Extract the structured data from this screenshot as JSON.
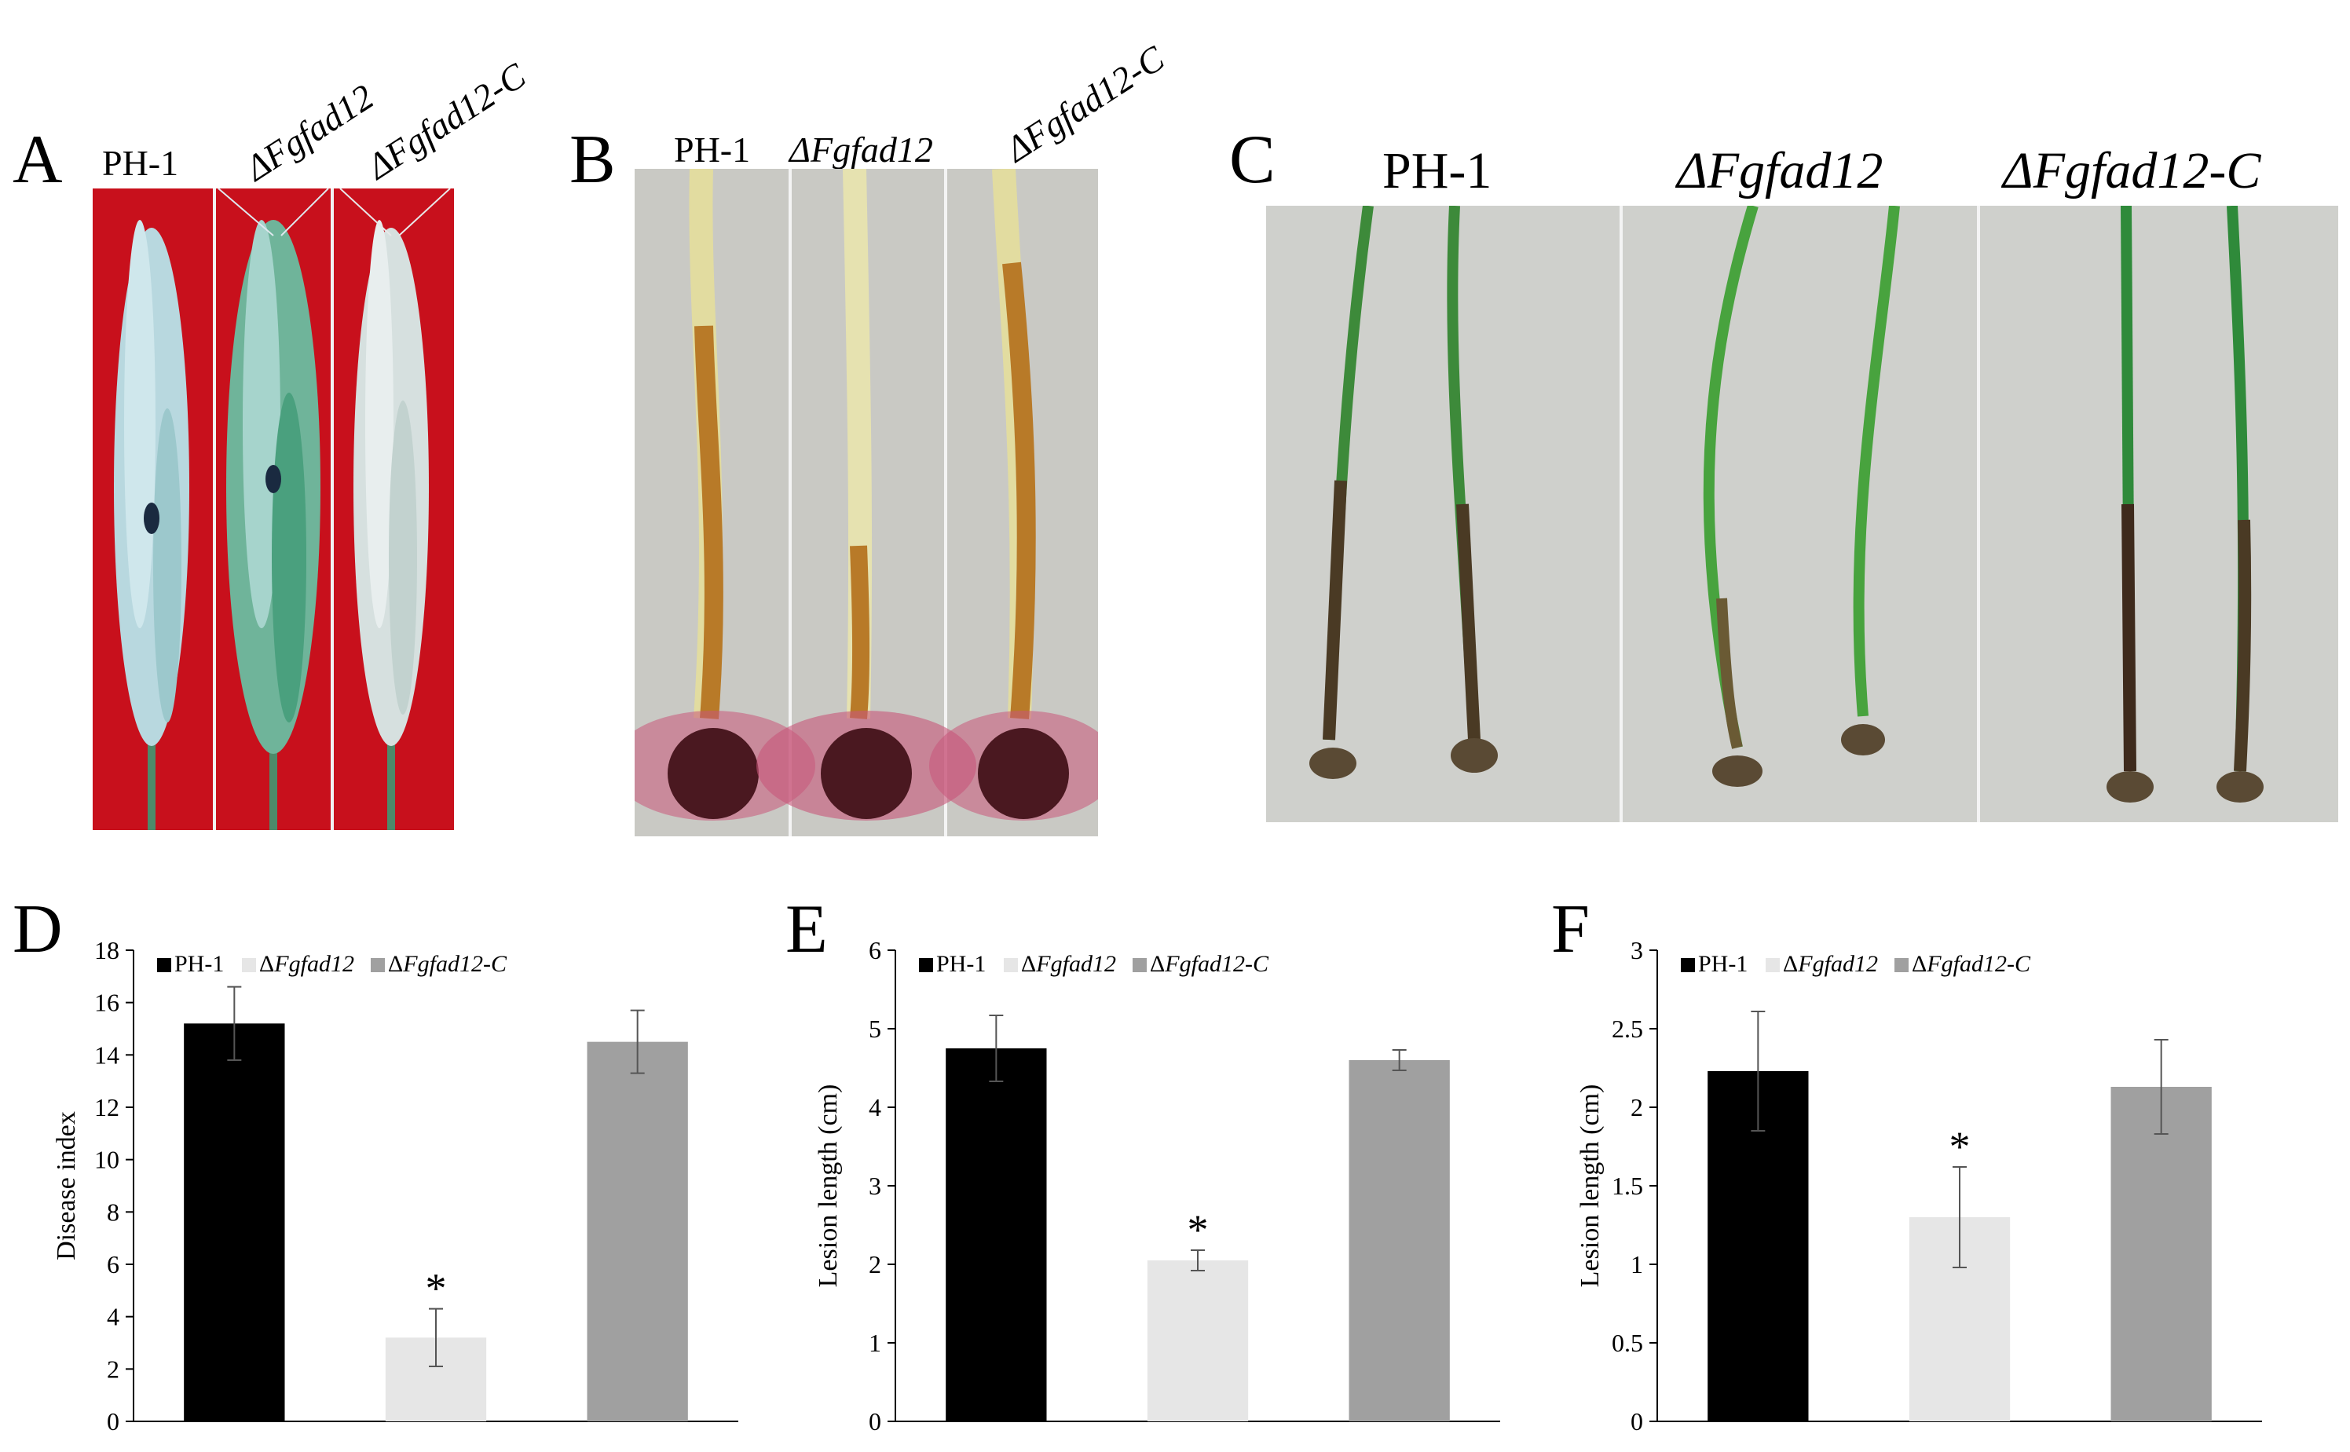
{
  "panels": {
    "A": {
      "letter": "A",
      "labels": [
        "PH-1",
        "ΔFgfad12",
        "ΔFgfad12-C"
      ]
    },
    "B": {
      "letter": "B",
      "labels": [
        "PH-1",
        "ΔFgfad12",
        "ΔFgfad12-C"
      ]
    },
    "C": {
      "letter": "C",
      "labels": [
        "PH-1",
        "ΔFgfad12",
        "ΔFgfad12-C"
      ]
    }
  },
  "colors": {
    "PH-1": "#000000",
    "mutant": "#e6e6e6",
    "complemented": "#a0a0a0",
    "photoA_bg": "#c8101c",
    "photoB_bg": "#c9c9c4",
    "photoC_bg": "#cfd0cc"
  },
  "chart_data": [
    {
      "panel": "D",
      "type": "bar",
      "categories": [
        "PH-1",
        "ΔFgfad12",
        "ΔFgfad12-C"
      ],
      "values": [
        15.2,
        3.2,
        14.5
      ],
      "errors": [
        1.4,
        1.1,
        1.2
      ],
      "significance": [
        "",
        "*",
        ""
      ],
      "ylabel": "Disease index",
      "xlabel": "",
      "ylim": [
        0,
        18
      ],
      "yticks": [
        0,
        2,
        4,
        6,
        8,
        10,
        12,
        14,
        16,
        18
      ],
      "legend": [
        "PH-1",
        "ΔFgfad12",
        "ΔFgfad12-C"
      ],
      "legend_position": "top"
    },
    {
      "panel": "E",
      "type": "bar",
      "categories": [
        "PH-1",
        "ΔFgfad12",
        "ΔFgfad12-C"
      ],
      "values": [
        4.75,
        2.05,
        4.6
      ],
      "errors": [
        0.42,
        0.13,
        0.13
      ],
      "significance": [
        "",
        "*",
        ""
      ],
      "ylabel": "Lesion length (cm)",
      "xlabel": "",
      "ylim": [
        0,
        6
      ],
      "yticks": [
        0,
        1,
        2,
        3,
        4,
        5,
        6
      ],
      "legend": [
        "PH-1",
        "ΔFgfad12",
        "ΔFgfad12-C"
      ],
      "legend_position": "top"
    },
    {
      "panel": "F",
      "type": "bar",
      "categories": [
        "PH-1",
        "ΔFgfad12",
        "ΔFgfad12-C"
      ],
      "values": [
        2.23,
        1.3,
        2.13
      ],
      "errors": [
        0.38,
        0.32,
        0.3
      ],
      "significance": [
        "",
        "*",
        ""
      ],
      "ylabel": "Lesion length (cm)",
      "xlabel": "",
      "ylim": [
        0,
        3
      ],
      "yticks": [
        0,
        0.5,
        1,
        1.5,
        2,
        2.5,
        3
      ],
      "legend": [
        "PH-1",
        "ΔFgfad12",
        "ΔFgfad12-C"
      ],
      "legend_position": "top"
    }
  ]
}
